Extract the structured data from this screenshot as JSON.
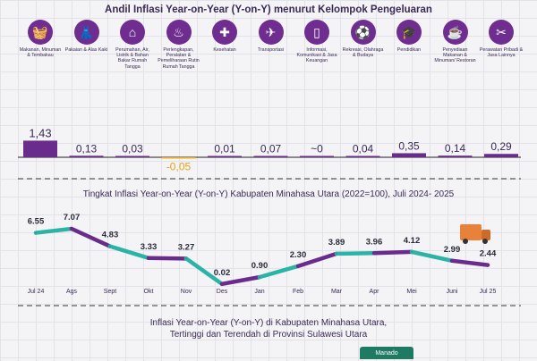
{
  "title_top": "Andil Inflasi Year-on-Year (Y-on-Y) menurut Kelompok Pengeluaran",
  "categories": [
    {
      "label": "Makanan, Minuman & Tembakau",
      "icon": "food-basket-icon",
      "glyph": "🧺"
    },
    {
      "label": "Pakaian & Alas Kaki",
      "icon": "dress-icon",
      "glyph": "👗"
    },
    {
      "label": "Perumahan, Air, Listrik & Bahan Bakar Rumah Tangga",
      "icon": "house-icon",
      "glyph": "⌂"
    },
    {
      "label": "Perlengkapan, Peralatan & Pemeliharaan Rutin Rumah Tangga",
      "icon": "iron-icon",
      "glyph": "♨"
    },
    {
      "label": "Kesehatan",
      "icon": "medical-kit-icon",
      "glyph": "✚"
    },
    {
      "label": "Transportasi",
      "icon": "airplane-icon",
      "glyph": "✈"
    },
    {
      "label": "Informasi, Komunikasi & Jasa Keuangan",
      "icon": "phone-icon",
      "glyph": "▯"
    },
    {
      "label": "Rekreasi, Olahraga & Budaya",
      "icon": "soccer-player-icon",
      "glyph": "⚽"
    },
    {
      "label": "Pendidikan",
      "icon": "graduation-cap-icon",
      "glyph": "🎓"
    },
    {
      "label": "Penyediaan Makanan & Minuman/ Restoran",
      "icon": "restaurant-icon",
      "glyph": "☕"
    },
    {
      "label": "Perawatan Pribadi & Jasa Lainnya",
      "icon": "scissors-icon",
      "glyph": "✂"
    }
  ],
  "chart_data": [
    {
      "type": "bar",
      "title": "Andil Inflasi Year-on-Year (Y-on-Y) menurut Kelompok Pengeluaran",
      "categories": [
        "Makanan, Minuman & Tembakau",
        "Pakaian & Alas Kaki",
        "Perumahan, Air, Listrik & Bahan Bakar Rumah Tangga",
        "Perlengkapan, Peralatan & Pemeliharaan Rutin Rumah Tangga",
        "Kesehatan",
        "Transportasi",
        "Informasi, Komunikasi & Jasa Keuangan",
        "Rekreasi, Olahraga & Budaya",
        "Pendidikan",
        "Penyediaan Makanan & Minuman/ Restoran",
        "Perawatan Pribadi & Jasa Lainnya"
      ],
      "values": [
        1.43,
        0.13,
        0.03,
        -0.05,
        0.01,
        0.07,
        0.0,
        0.04,
        0.35,
        0.14,
        0.29
      ],
      "labels": [
        "1,43",
        "0,13",
        "0,03",
        "-0,05",
        "0,01",
        "0,07",
        "~0",
        "0,04",
        "0,35",
        "0,14",
        "0,29"
      ],
      "colors": {
        "positive": "#6a2c8c",
        "negative": "#f0b323",
        "label_negative": "#e8a317"
      }
    },
    {
      "type": "line",
      "title": "Tingkat Inflasi Year-on-Year (Y-on-Y) Kabupaten Minahasa Utara (2022=100), Juli 2024- 2025",
      "x": [
        "Jul 24",
        "Ags",
        "Sept",
        "Okt",
        "Nov",
        "Des",
        "Jan",
        "Feb",
        "Mar",
        "Apr",
        "Mei",
        "Juni",
        "Jul 25"
      ],
      "values": [
        6.55,
        7.07,
        4.83,
        3.33,
        3.27,
        0.02,
        0.9,
        2.3,
        3.89,
        3.96,
        4.12,
        2.99,
        2.44
      ],
      "labels": [
        "6.55",
        "7.07",
        "4.83",
        "3.33",
        "3.27",
        "0.02",
        "0.90",
        "2.30",
        "3.89",
        "3.96",
        "4.12",
        "2.99",
        "2.44"
      ],
      "colors": {
        "purple": "#6a2c8c",
        "teal": "#2bb3a6"
      }
    }
  ],
  "title_line": "Tingkat Inflasi Year-on-Year (Y-on-Y) Kabupaten Minahasa Utara (2022=100), Juli 2024- 2025",
  "bottom": {
    "line1": "Inflasi Year-on-Year (Y-on-Y) di Kabupaten Minahasa Utara,",
    "line2": "Tertinggi dan Terendah di Provinsi Sulawesi Utara",
    "tag": "Manado"
  }
}
